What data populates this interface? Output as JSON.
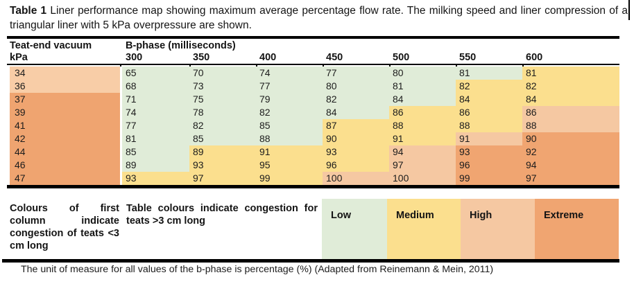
{
  "title": {
    "label": "Table 1",
    "text": "Liner performance map showing maximum average percentage flow rate. The milking speed and liner compression of a triangular liner with 5 kPa overpressure are shown."
  },
  "table": {
    "col1_header_line1": "Teat-end vacuum",
    "col1_header_line2": "kPa",
    "group_header": "B-phase (milliseconds)",
    "columns": [
      "300",
      "350",
      "400",
      "450",
      "500",
      "550",
      "600"
    ],
    "rows": [
      {
        "kpa": "34",
        "kpa_level": "light",
        "values": [
          "65",
          "70",
          "74",
          "77",
          "80",
          "81",
          "81"
        ],
        "levels": [
          "low",
          "low",
          "low",
          "low",
          "low",
          "low",
          "medium"
        ]
      },
      {
        "kpa": "36",
        "kpa_level": "light",
        "values": [
          "68",
          "73",
          "77",
          "80",
          "81",
          "82",
          "82"
        ],
        "levels": [
          "low",
          "low",
          "low",
          "low",
          "low",
          "medium",
          "medium"
        ]
      },
      {
        "kpa": "37",
        "kpa_level": "dark",
        "values": [
          "71",
          "75",
          "79",
          "82",
          "84",
          "84",
          "84"
        ],
        "levels": [
          "low",
          "low",
          "low",
          "low",
          "low",
          "medium",
          "medium"
        ]
      },
      {
        "kpa": "39",
        "kpa_level": "dark",
        "values": [
          "74",
          "78",
          "82",
          "84",
          "86",
          "86",
          "86"
        ],
        "levels": [
          "low",
          "low",
          "low",
          "low",
          "medium",
          "medium",
          "high"
        ]
      },
      {
        "kpa": "41",
        "kpa_level": "dark",
        "values": [
          "77",
          "82",
          "85",
          "87",
          "88",
          "88",
          "88"
        ],
        "levels": [
          "low",
          "low",
          "low",
          "medium",
          "medium",
          "medium",
          "high"
        ]
      },
      {
        "kpa": "42",
        "kpa_level": "dark",
        "values": [
          "81",
          "85",
          "88",
          "90",
          "91",
          "91",
          "90"
        ],
        "levels": [
          "low",
          "low",
          "low",
          "medium",
          "medium",
          "high",
          "extreme"
        ]
      },
      {
        "kpa": "44",
        "kpa_level": "dark",
        "values": [
          "85",
          "89",
          "91",
          "93",
          "94",
          "93",
          "92"
        ],
        "levels": [
          "low",
          "medium",
          "medium",
          "medium",
          "high",
          "extreme",
          "extreme"
        ]
      },
      {
        "kpa": "46",
        "kpa_level": "dark",
        "values": [
          "89",
          "93",
          "95",
          "96",
          "97",
          "96",
          "94"
        ],
        "levels": [
          "low",
          "medium",
          "medium",
          "medium",
          "high",
          "extreme",
          "extreme"
        ]
      },
      {
        "kpa": "47",
        "kpa_level": "dark",
        "values": [
          "93",
          "97",
          "99",
          "100",
          "100",
          "99",
          "97"
        ],
        "levels": [
          "medium",
          "medium",
          "medium",
          "high",
          "high",
          "extreme",
          "extreme"
        ]
      }
    ]
  },
  "legend": {
    "first_col_note": "Colours of first column indicate congestion of teats <3 cm long",
    "table_note": "Table colours indicate congestion for teats >3 cm long",
    "categories": [
      {
        "label": "Low",
        "level": "low"
      },
      {
        "label": "Medium",
        "level": "medium"
      },
      {
        "label": "High",
        "level": "high"
      },
      {
        "label": "Extreme",
        "level": "extreme"
      }
    ]
  },
  "footer": "The unit of measure for all values of the b-phase is percentage (%) (Adapted from Reinemann & Mein, 2011)",
  "colors": {
    "low": "#e0ecd8",
    "medium": "#fbdf8e",
    "high": "#f5c8a2",
    "extreme": "#f0a571",
    "first_light": "#f8cda7",
    "first_dark": "#efa470"
  }
}
